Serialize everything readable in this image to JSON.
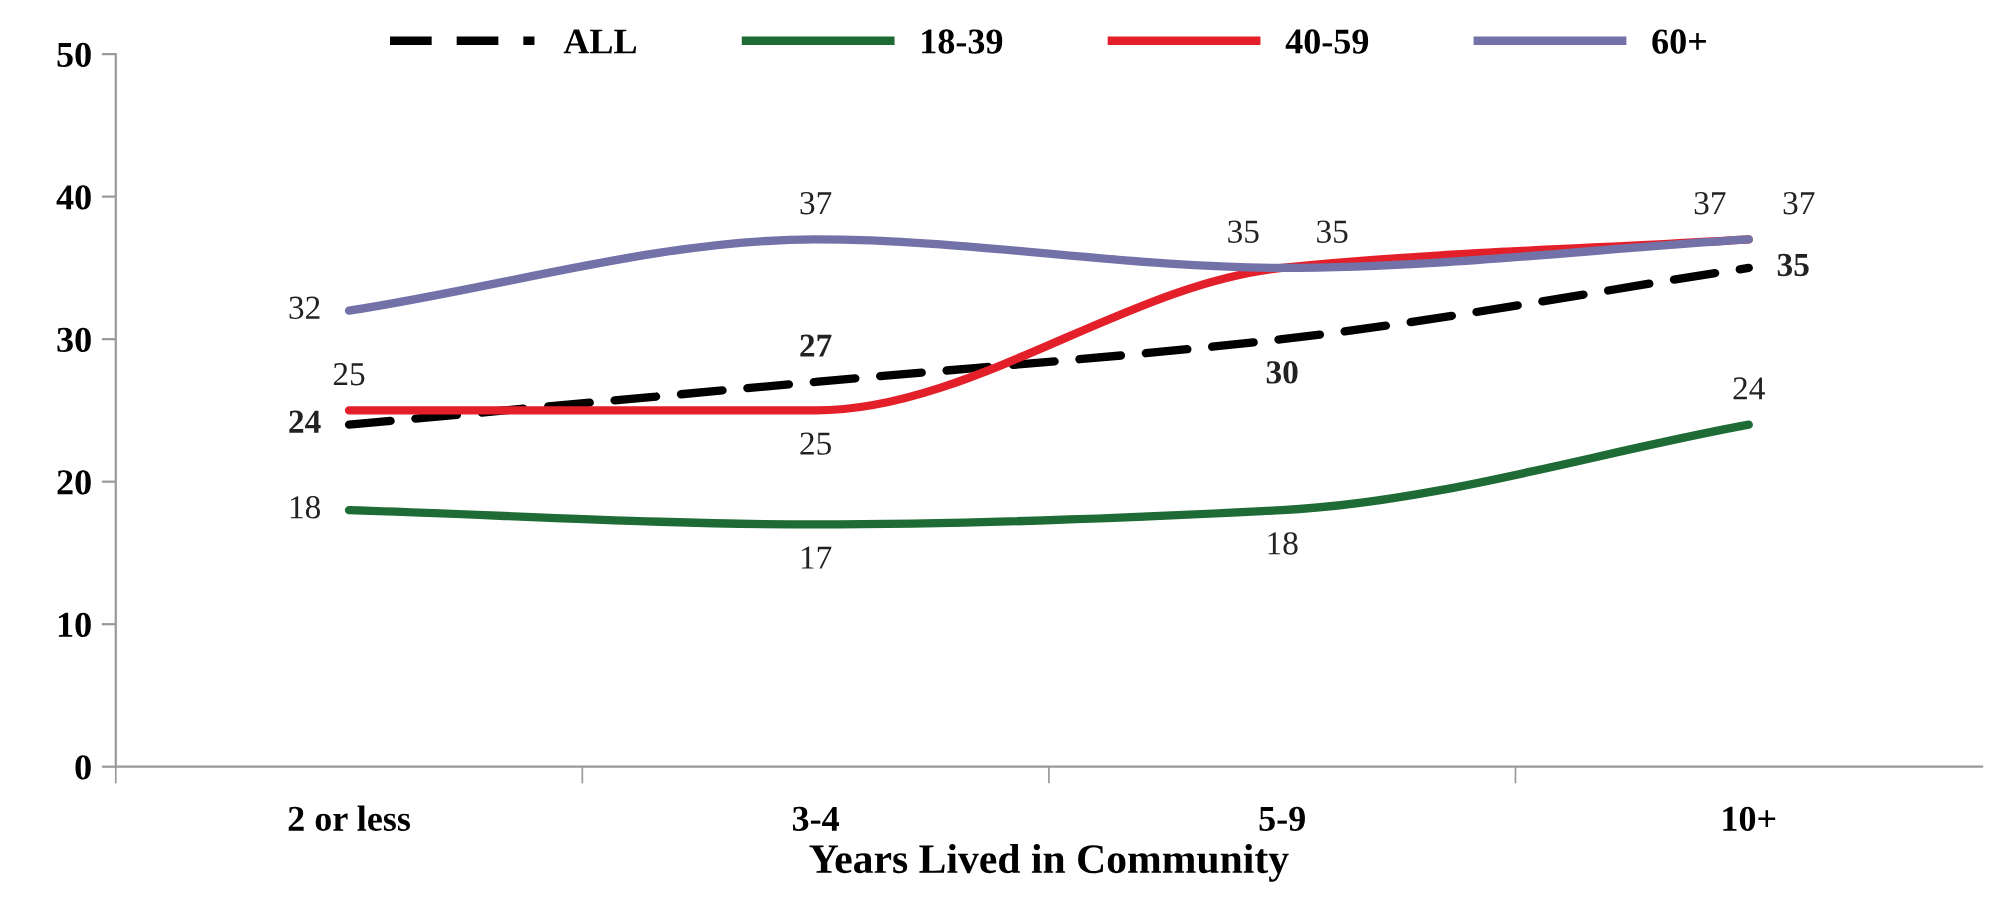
{
  "chart_data": {
    "type": "line",
    "xlabel": "Years Lived in Community",
    "categories": [
      "2 or less",
      "3-4",
      "5-9",
      "10+"
    ],
    "series": [
      {
        "name": "ALL",
        "color": "#000000",
        "line_style": "dashed",
        "values": [
          24,
          27,
          30,
          35
        ]
      },
      {
        "name": "18-39",
        "color": "#1e6b35",
        "values": [
          18,
          17,
          18,
          24
        ]
      },
      {
        "name": "40-59",
        "color": "#e3202a",
        "values": [
          25,
          25,
          35,
          37
        ]
      },
      {
        "name": "60+",
        "color": "#7272a8",
        "values": [
          32,
          37,
          35,
          37
        ]
      }
    ],
    "ylim": [
      0,
      50
    ],
    "yticks": [
      0,
      10,
      20,
      30,
      40,
      50
    ],
    "grid": false,
    "legend": "top",
    "data_labels": true,
    "marker": "none"
  }
}
